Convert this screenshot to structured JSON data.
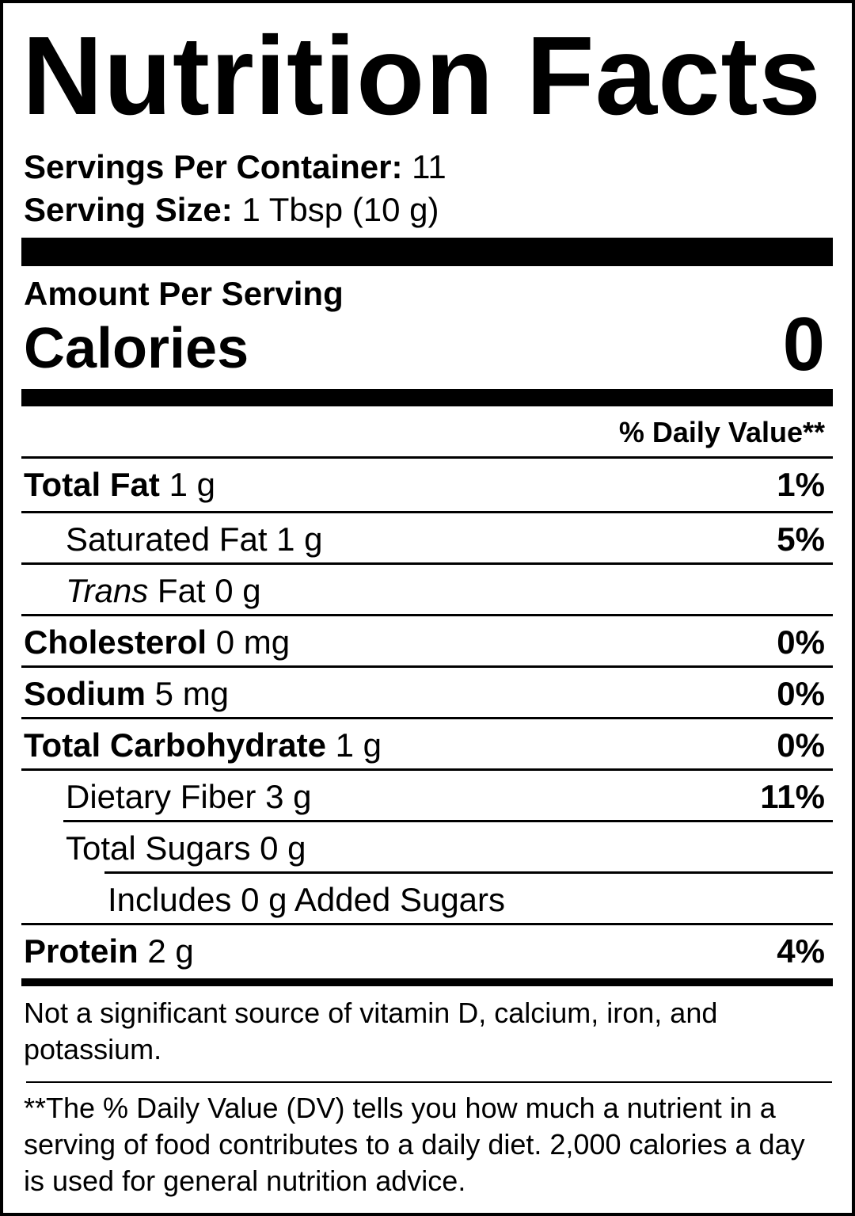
{
  "title": "Nutrition Facts",
  "servings": {
    "label": "Servings Per Container:",
    "value": "11"
  },
  "serving_size": {
    "label": "Serving Size:",
    "value": "1 Tbsp (10 g)"
  },
  "amount_per_serving": "Amount Per Serving",
  "calories": {
    "label": "Calories",
    "value": "0"
  },
  "dv_header": "% Daily Value**",
  "nutrients": [
    {
      "name": "Total Fat",
      "amount": "1 g",
      "dv": "1%",
      "bold": true,
      "indent": 0
    },
    {
      "name": "Saturated Fat",
      "amount": "1 g",
      "dv": "5%",
      "bold": false,
      "indent": 1
    },
    {
      "name": "Trans",
      "name_suffix": "Fat",
      "amount": "0 g",
      "dv": "",
      "bold": false,
      "indent": 1,
      "italic_name": true
    },
    {
      "name": "Cholesterol",
      "amount": "0 mg",
      "dv": "0%",
      "bold": true,
      "indent": 0
    },
    {
      "name": "Sodium",
      "amount": "5 mg",
      "dv": "0%",
      "bold": true,
      "indent": 0
    },
    {
      "name": "Total Carbohydrate",
      "amount": "1 g",
      "dv": "0%",
      "bold": true,
      "indent": 0
    },
    {
      "name": "Dietary Fiber",
      "amount": "3 g",
      "dv": "11%",
      "bold": false,
      "indent": 1
    },
    {
      "name": "Total Sugars",
      "amount": "0 g",
      "dv": "",
      "bold": false,
      "indent": 1
    },
    {
      "name": "Includes 0 g Added Sugars",
      "amount": "",
      "dv": "",
      "bold": false,
      "indent": 2
    },
    {
      "name": "Protein",
      "amount": "2 g",
      "dv": "4%",
      "bold": true,
      "indent": 0
    }
  ],
  "vitamins_note": "Not a significant source of vitamin D, calcium, iron, and potassium.",
  "dv_footnote": "**The % Daily Value (DV) tells you how much a nutrient in a serving of food contributes to a daily diet. 2,000 calories a day is used for general nutrition advice."
}
